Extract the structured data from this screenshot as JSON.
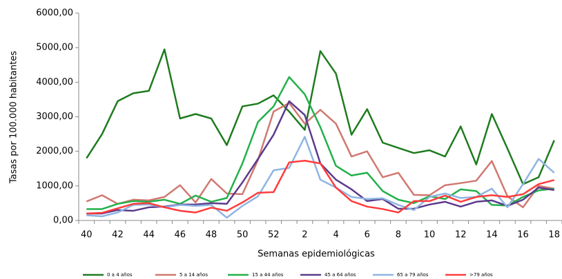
{
  "chart_data": {
    "type": "line",
    "x_label": "Semanas epidemiológicas",
    "y_label": "Tasas por 100.000 habitantes",
    "categories": [
      "40",
      null,
      "42",
      null,
      "44",
      null,
      "46",
      null,
      "48",
      null,
      "50",
      null,
      "52",
      null,
      "2",
      null,
      "4",
      null,
      "6",
      null,
      "8",
      null,
      "10",
      null,
      "12",
      null,
      "14",
      null,
      "16",
      null,
      "18"
    ],
    "ylim": [
      0,
      6000
    ],
    "yticks": [
      {
        "value": 0,
        "label": "0,00"
      },
      {
        "value": 1000,
        "label": "1000,00"
      },
      {
        "value": 2000,
        "label": "2000,00"
      },
      {
        "value": 3000,
        "label": "3000,00"
      },
      {
        "value": 4000,
        "label": "4000,00"
      },
      {
        "value": 5000,
        "label": "5000,00"
      },
      {
        "value": 6000,
        "label": "6000,00"
      }
    ],
    "grid": false,
    "legend_position": "bottom",
    "series": [
      {
        "name": "0 a 4 años",
        "color": "#1e7b1e",
        "values": [
          1800,
          2500,
          3450,
          3680,
          3750,
          4950,
          2950,
          3080,
          2950,
          2180,
          3300,
          3380,
          3620,
          3150,
          2620,
          4900,
          4250,
          2480,
          3220,
          2250,
          2100,
          1950,
          2030,
          1850,
          2720,
          1620,
          3080,
          2080,
          1050,
          1250,
          2320
        ]
      },
      {
        "name": "5 a 14 años",
        "color": "#d07870",
        "values": [
          550,
          730,
          480,
          600,
          580,
          680,
          1020,
          520,
          1200,
          780,
          760,
          1750,
          3150,
          3400,
          2800,
          3200,
          2800,
          1850,
          2000,
          1250,
          1380,
          740,
          730,
          1020,
          1080,
          1150,
          1720,
          700,
          380,
          1000,
          920
        ]
      },
      {
        "name": "15 a 44 años",
        "color": "#22b04a",
        "values": [
          330,
          330,
          480,
          560,
          540,
          600,
          480,
          720,
          540,
          650,
          1650,
          2850,
          3300,
          4150,
          3650,
          2700,
          1580,
          1300,
          1380,
          850,
          600,
          500,
          700,
          620,
          900,
          850,
          450,
          430,
          680,
          870,
          920
        ]
      },
      {
        "name": "45 a 64 años",
        "color": "#5b3a8c",
        "values": [
          200,
          200,
          300,
          280,
          380,
          400,
          460,
          460,
          500,
          480,
          1100,
          1780,
          2480,
          3450,
          3050,
          1650,
          1180,
          900,
          560,
          620,
          340,
          340,
          460,
          540,
          400,
          540,
          580,
          420,
          600,
          950,
          880
        ]
      },
      {
        "name": "65 a 79 años",
        "color": "#8eb4e3",
        "values": [
          150,
          120,
          230,
          450,
          460,
          380,
          450,
          420,
          450,
          80,
          420,
          700,
          1450,
          1520,
          2420,
          1180,
          950,
          680,
          620,
          640,
          450,
          300,
          680,
          780,
          650,
          680,
          920,
          380,
          1050,
          1780,
          1380
        ]
      },
      {
        "name": ">79 años",
        "color": "#ff3b3b",
        "values": [
          200,
          220,
          350,
          480,
          500,
          380,
          280,
          230,
          370,
          280,
          520,
          800,
          820,
          1680,
          1730,
          1650,
          950,
          560,
          400,
          330,
          230,
          560,
          560,
          720,
          540,
          680,
          730,
          680,
          760,
          1050,
          1170
        ]
      }
    ]
  }
}
